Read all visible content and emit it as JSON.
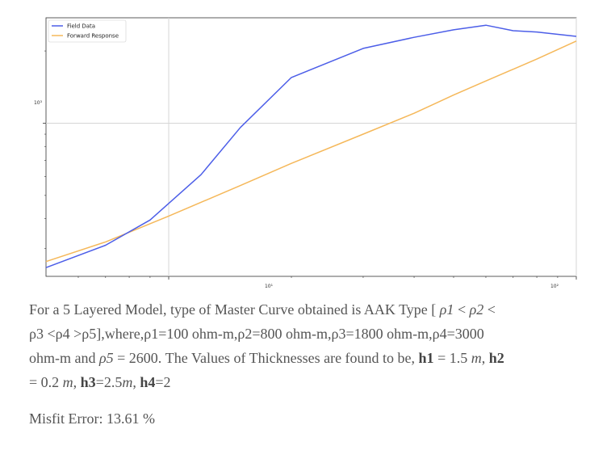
{
  "chart_data": {
    "type": "line",
    "xscale": "log",
    "yscale": "log",
    "xlim": [
      0.5,
      10
    ],
    "ylim": [
      230,
      2750
    ],
    "grid": true,
    "legend_position": "top-left",
    "x_ticks": [
      "10¹",
      "10²"
    ],
    "y_ticks": [
      "10³"
    ],
    "title": "",
    "xlabel": "",
    "ylabel": "",
    "series": [
      {
        "name": "Field Data",
        "color": "#4c5ee8",
        "x": [
          0.5,
          0.7,
          0.9,
          1.2,
          1.5,
          2.0,
          3.0,
          4.0,
          5.0,
          6.0,
          7.0,
          8.0,
          10.0
        ],
        "y": [
          250,
          310,
          395,
          610,
          960,
          1550,
          2050,
          2280,
          2450,
          2560,
          2430,
          2400,
          2300
        ]
      },
      {
        "name": "Forward Response",
        "color": "#f5b85a",
        "x": [
          0.5,
          0.7,
          1.0,
          1.5,
          2.0,
          3.0,
          4.0,
          5.0,
          6.0,
          8.0,
          10.0
        ],
        "y": [
          265,
          320,
          410,
          550,
          680,
          900,
          1100,
          1310,
          1500,
          1850,
          2200
        ]
      }
    ]
  },
  "description": {
    "line1_a": "For a 5 Layered Model, type of Master Curve obtained is AAK Type [ ",
    "rho1": "ρ1",
    "lt1": " < ",
    "rho2": "ρ2",
    "lt2": " <",
    "line2_a": "ρ3 <ρ4 >ρ5],where,ρ1=100 ohm-m,ρ2=800 ohm-m,ρ3=1800 ohm-m,ρ4=3000",
    "line3_a": "ohm-m and ",
    "rho5": "ρ5",
    "line3_b": " = 2600. The Values of Thicknesses are found to be, ",
    "h1": "h1",
    "h1_val": " = 1.5 ",
    "m1": "m",
    "comma1": ", ",
    "h2": "h2",
    "line4_a": "= 0.2 ",
    "m2": "m",
    "comma2": ", ",
    "h3": "h3",
    "h3_val": "=2.5",
    "m3": "m",
    "comma3": ", ",
    "h4": "h4",
    "h4_val": "=2"
  },
  "misfit": {
    "text": "Misfit Error: 13.61 %"
  }
}
